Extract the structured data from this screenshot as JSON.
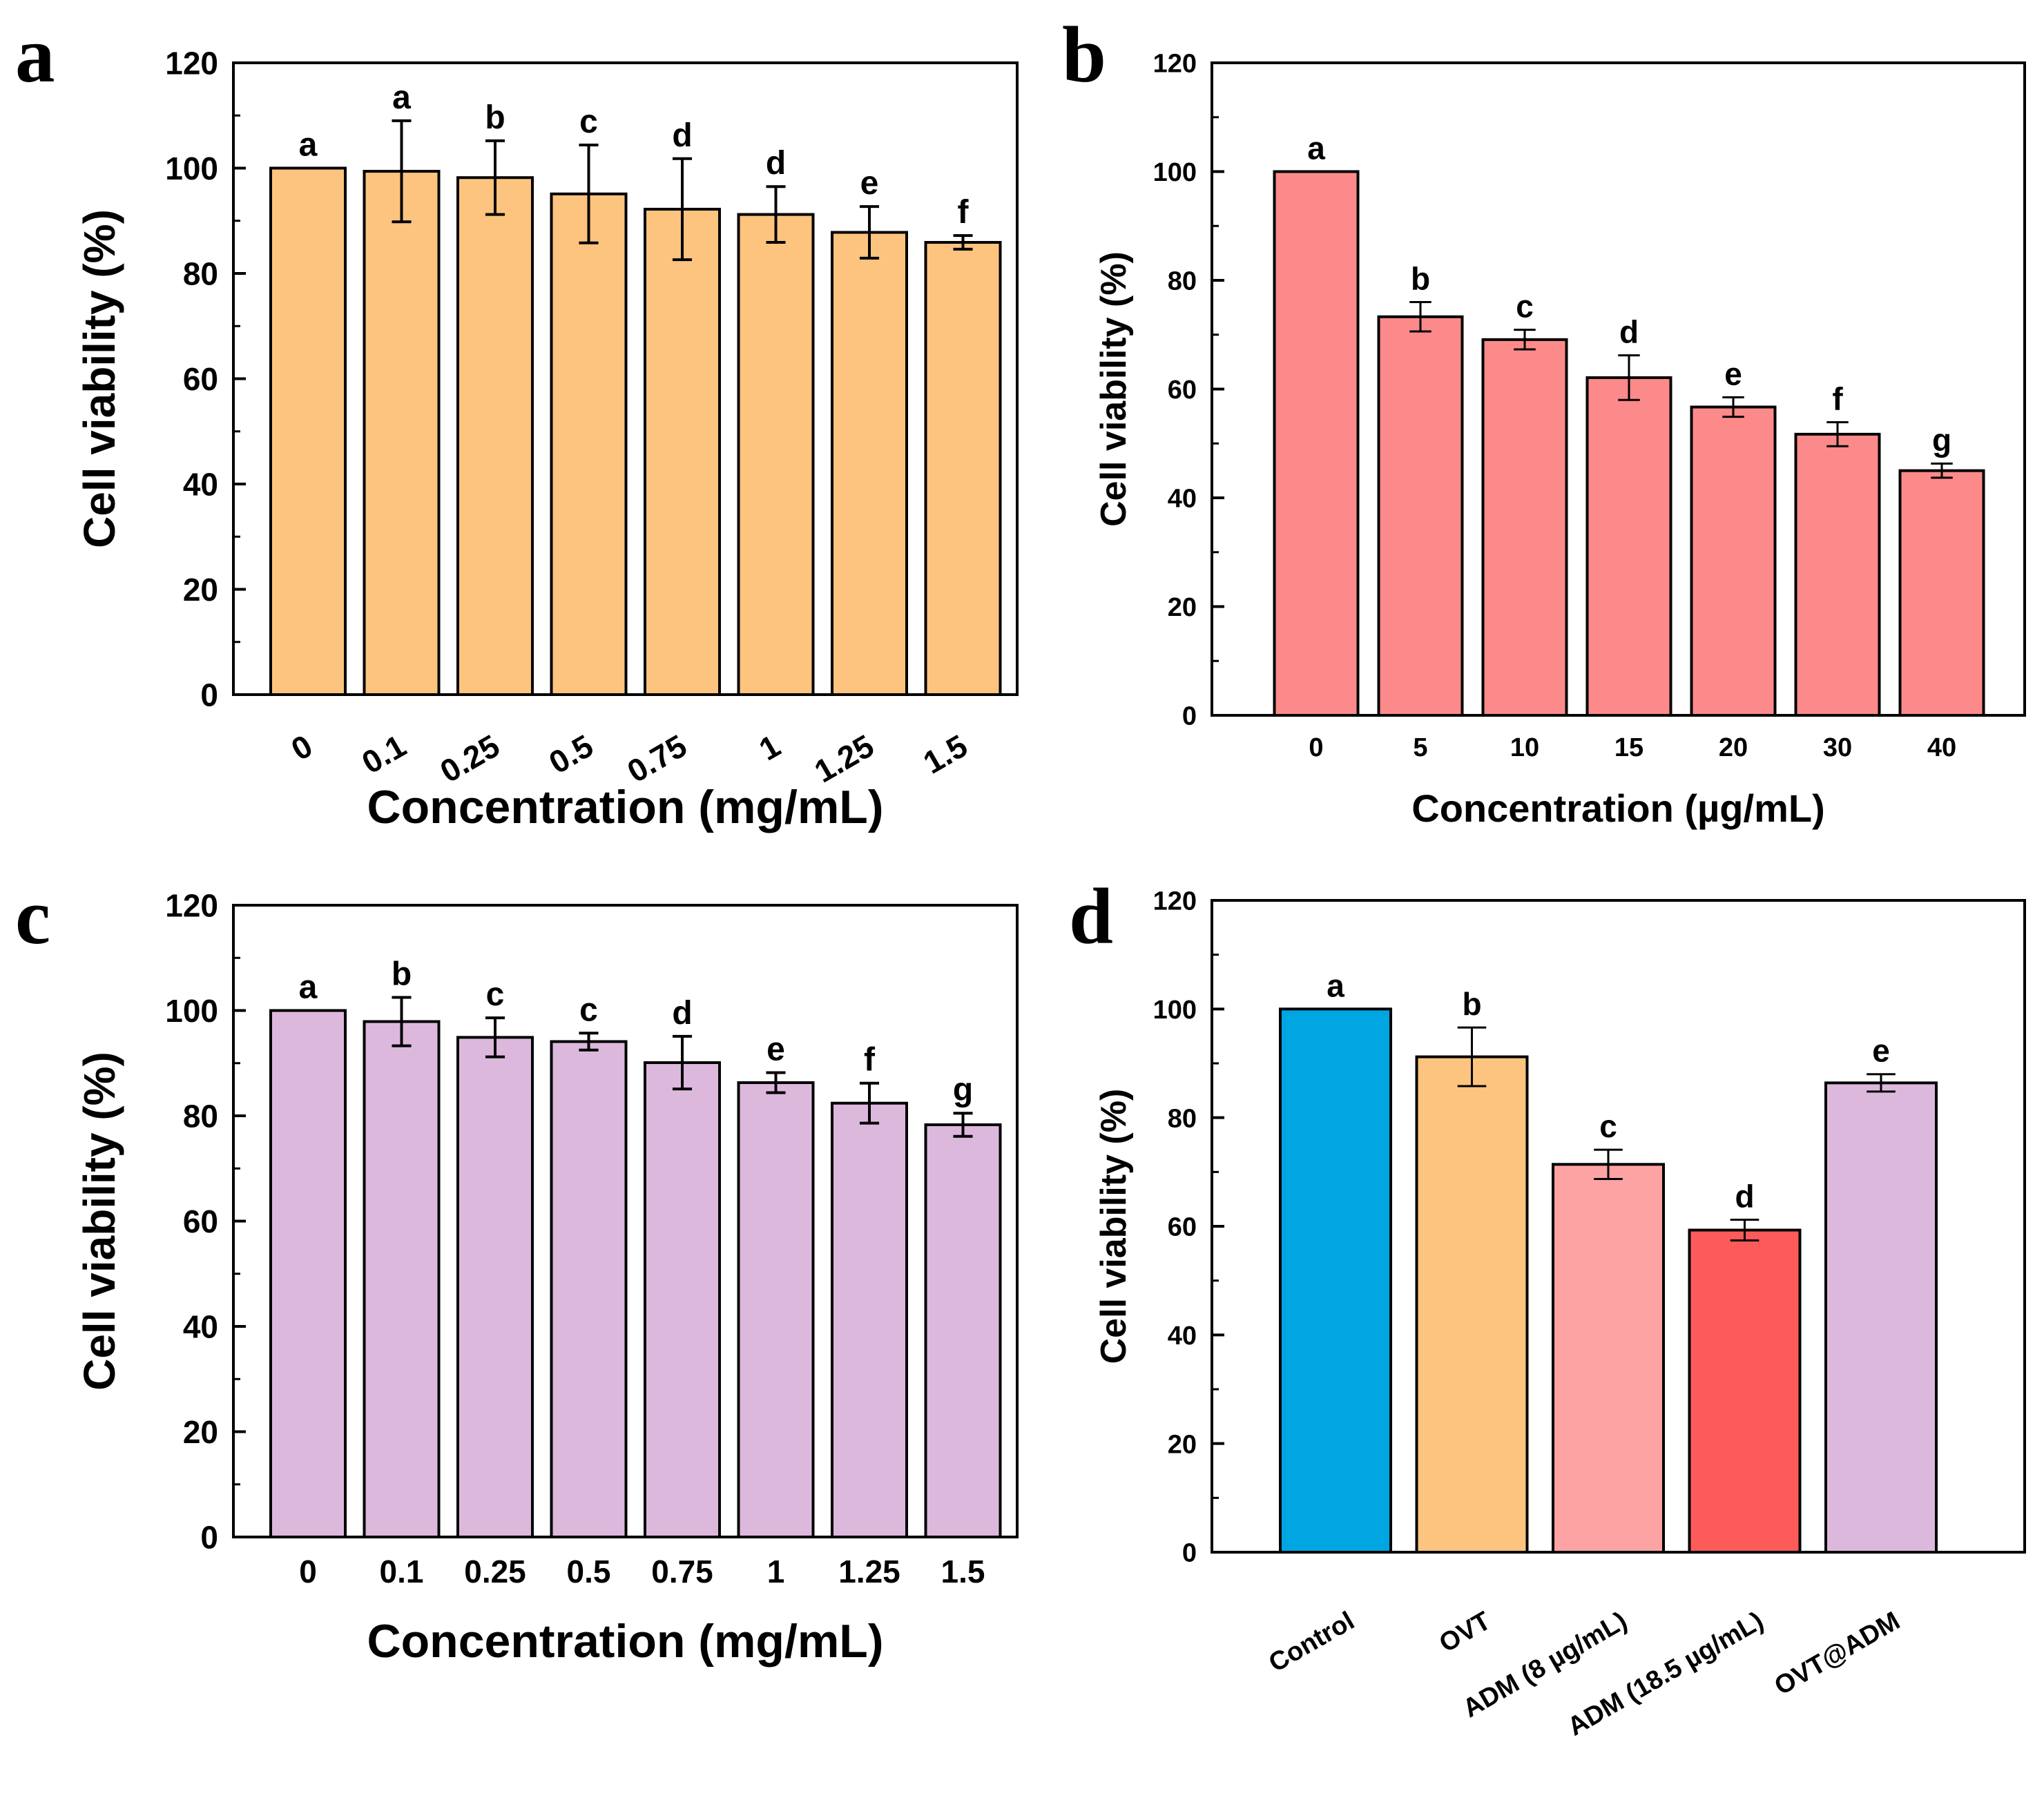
{
  "chart_data": [
    {
      "panel": "a",
      "type": "bar",
      "categories": [
        "0",
        "0.1",
        "0.25",
        "0.5",
        "0.75",
        "1",
        "1.25",
        "1.5"
      ],
      "values": [
        100,
        99.4,
        98.2,
        95.1,
        92.2,
        91.2,
        87.8,
        85.9
      ],
      "errors": [
        0,
        9.6,
        7,
        9.3,
        9.6,
        5.3,
        4.9,
        1.3
      ],
      "letters": [
        "a",
        "a",
        "b",
        "c",
        "d",
        "d",
        "e",
        "f"
      ],
      "color": "#FDC47F",
      "xlabel": "Concentration (mg/mL)",
      "ylabel": "Cell viability (%)",
      "ylim": [
        0,
        120
      ],
      "yticks": [
        0,
        20,
        40,
        60,
        80,
        100,
        120
      ],
      "rotate_xticks": true
    },
    {
      "panel": "b",
      "type": "bar",
      "categories": [
        "0",
        "5",
        "10",
        "15",
        "20",
        "30",
        "40"
      ],
      "values": [
        100,
        73.3,
        69.1,
        62.1,
        56.7,
        51.7,
        45
      ],
      "errors": [
        0,
        2.7,
        1.8,
        4.1,
        1.8,
        2.2,
        1.3
      ],
      "letters": [
        "a",
        "b",
        "c",
        "d",
        "e",
        "f",
        "g"
      ],
      "color": "#FD8A8A",
      "xlabel": "Concentration (µg/mL)",
      "ylabel": "Cell viability (%)",
      "ylim": [
        0,
        120
      ],
      "yticks": [
        0,
        20,
        40,
        60,
        80,
        100,
        120
      ],
      "rotate_xticks": false
    },
    {
      "panel": "c",
      "type": "bar",
      "categories": [
        "0",
        "0.1",
        "0.25",
        "0.5",
        "0.75",
        "1",
        "1.25",
        "1.5"
      ],
      "values": [
        100,
        97.9,
        94.9,
        94.1,
        90.1,
        86.3,
        82.4,
        78.3
      ],
      "errors": [
        0,
        4.6,
        3.7,
        1.6,
        5,
        1.9,
        3.8,
        2.2
      ],
      "letters": [
        "a",
        "b",
        "c",
        "c",
        "d",
        "e",
        "f",
        "g"
      ],
      "color": "#DDB8DD",
      "xlabel": "Concentration (mg/mL)",
      "ylabel": "Cell viability (%)",
      "ylim": [
        0,
        120
      ],
      "yticks": [
        0,
        20,
        40,
        60,
        80,
        100,
        120
      ],
      "rotate_xticks": false
    },
    {
      "panel": "d",
      "type": "bar",
      "categories": [
        "Control",
        "OVT",
        "ADM (8 µg/mL)",
        "ADM (18.5 µg/mL)",
        "OVT@ADM"
      ],
      "values": [
        100,
        91.2,
        71.4,
        59.3,
        86.4
      ],
      "errors": [
        0,
        5.4,
        2.7,
        1.9,
        1.6
      ],
      "letters": [
        "a",
        "b",
        "c",
        "d",
        "e"
      ],
      "colors": [
        "#00A6E2",
        "#FDC47F",
        "#FDA3A3",
        "#FD5A5A",
        "#DDB8DD"
      ],
      "xlabel": "",
      "ylabel": "Cell viability (%)",
      "ylim": [
        0,
        120
      ],
      "yticks": [
        0,
        20,
        40,
        60,
        80,
        100,
        120
      ],
      "rotate_xticks": true
    }
  ]
}
